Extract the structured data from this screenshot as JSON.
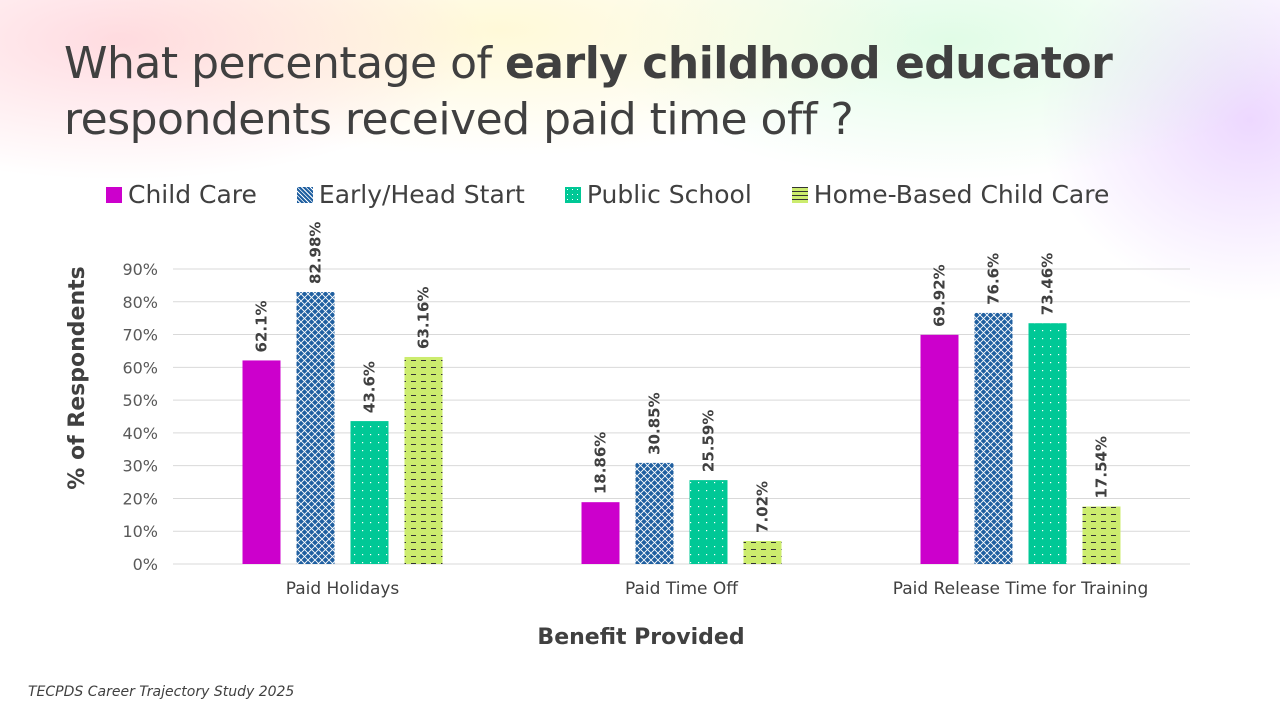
{
  "title": {
    "pre": "What percentage of ",
    "bold": "early childhood educator",
    "post": "respondents received paid time off ?"
  },
  "footer": "TECPDS Career Trajectory Study 2025",
  "colors": {
    "Child Care": "#cc00cc",
    "Early/Head Start": "#1f5fa0",
    "Public School": "#00c896",
    "Home-Based Child Care": "#ccec6e"
  },
  "chart_data": {
    "type": "bar",
    "title": "What percentage of early childhood educator respondents received paid time off ?",
    "xlabel": "Benefit Provided",
    "ylabel": "% of Respondents",
    "ylim": [
      0,
      90
    ],
    "yticks": [
      "0%",
      "10%",
      "20%",
      "30%",
      "40%",
      "50%",
      "60%",
      "70%",
      "80%",
      "90%"
    ],
    "grid": true,
    "legend": "top",
    "categories": [
      "Paid Holidays",
      "Paid Time Off",
      "Paid Release Time for Training"
    ],
    "series": [
      {
        "name": "Child Care",
        "values": [
          62.1,
          18.86,
          69.92
        ],
        "labels": [
          "62.1%",
          "18.86%",
          "69.92%"
        ]
      },
      {
        "name": "Early/Head Start",
        "values": [
          82.98,
          30.85,
          76.6
        ],
        "labels": [
          "82.98%",
          "30.85%",
          "76.6%"
        ]
      },
      {
        "name": "Public School",
        "values": [
          43.6,
          25.59,
          73.46
        ],
        "labels": [
          "43.6%",
          "25.59%",
          "73.46%"
        ]
      },
      {
        "name": "Home-Based Child Care",
        "values": [
          63.16,
          7.02,
          17.54
        ],
        "labels": [
          "63.16%",
          "7.02%",
          "17.54%"
        ]
      }
    ]
  }
}
